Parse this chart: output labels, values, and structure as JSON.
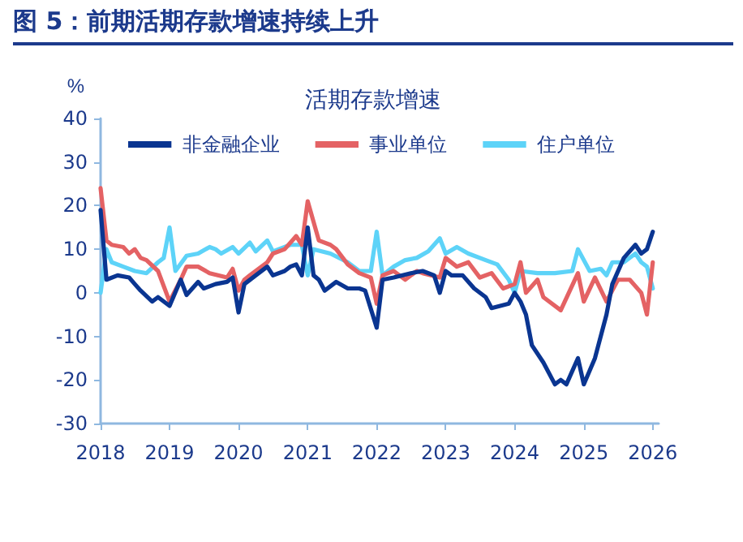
{
  "chart_data": {
    "type": "line",
    "title": "图 5：前期活期存款增速持续上升",
    "subtitle": "活期存款增速",
    "ylabel": "%",
    "xlim": [
      "2018-01",
      "2026-02"
    ],
    "xticks": [
      "2018",
      "2019",
      "2020",
      "2021",
      "2022",
      "2023",
      "2024",
      "2025",
      "2026"
    ],
    "ylim": [
      -30,
      40
    ],
    "yticks": [
      -30,
      -20,
      -10,
      0,
      10,
      20,
      30,
      40
    ],
    "grid": false,
    "legend": "top",
    "marker": "none",
    "line_style": "solid",
    "series": [
      {
        "name": "非金融企业",
        "color": "#0a3591",
        "x": [
          "2018-01",
          "2018-02",
          "2018-04",
          "2018-06",
          "2018-07",
          "2018-08",
          "2018-10",
          "2018-11",
          "2019-01",
          "2019-03",
          "2019-04",
          "2019-06",
          "2019-07",
          "2019-09",
          "2019-11",
          "2019-12",
          "2020-01",
          "2020-02",
          "2020-04",
          "2020-06",
          "2020-07",
          "2020-09",
          "2020-10",
          "2020-11",
          "2020-12",
          "2021-01",
          "2021-02",
          "2021-03",
          "2021-04",
          "2021-06",
          "2021-08",
          "2021-10",
          "2021-11",
          "2022-01",
          "2022-02",
          "2022-04",
          "2022-07",
          "2022-09",
          "2022-11",
          "2022-12",
          "2023-01",
          "2023-02",
          "2023-04",
          "2023-06",
          "2023-08",
          "2023-09",
          "2023-12",
          "2024-01",
          "2024-02",
          "2024-03",
          "2024-04",
          "2024-06",
          "2024-08",
          "2024-09",
          "2024-10",
          "2024-12",
          "2025-01",
          "2025-03",
          "2025-05",
          "2025-06",
          "2025-08",
          "2025-10",
          "2025-11",
          "2025-12",
          "2026-01"
        ],
        "values": [
          19,
          3,
          4,
          3.5,
          2,
          0.5,
          -2,
          -1,
          -3,
          3,
          -0.5,
          2.5,
          1,
          2,
          2.5,
          3.5,
          -4.5,
          2,
          4,
          6,
          4,
          5,
          6,
          6.5,
          4,
          15,
          4,
          3,
          0.5,
          2.5,
          1,
          1,
          0.5,
          -8,
          3,
          3.5,
          4.5,
          5,
          4,
          0,
          5,
          4,
          4,
          1,
          -1,
          -3.5,
          -2.5,
          0,
          -2,
          -5,
          -12,
          -16,
          -21,
          -20,
          -21,
          -15,
          -21,
          -15,
          -5,
          2,
          8,
          11,
          9,
          10,
          14
        ]
      },
      {
        "name": "事业单位",
        "color": "#e46264",
        "x": [
          "2018-01",
          "2018-02",
          "2018-03",
          "2018-05",
          "2018-06",
          "2018-07",
          "2018-08",
          "2018-09",
          "2018-11",
          "2019-01",
          "2019-03",
          "2019-04",
          "2019-06",
          "2019-08",
          "2019-11",
          "2019-12",
          "2020-01",
          "2020-02",
          "2020-03",
          "2020-06",
          "2020-07",
          "2020-09",
          "2020-11",
          "2020-12",
          "2021-01",
          "2021-03",
          "2021-05",
          "2021-06",
          "2021-08",
          "2021-10",
          "2021-12",
          "2022-01",
          "2022-02",
          "2022-04",
          "2022-06",
          "2022-08",
          "2022-09",
          "2022-12",
          "2023-01",
          "2023-03",
          "2023-05",
          "2023-07",
          "2023-09",
          "2023-11",
          "2024-01",
          "2024-02",
          "2024-03",
          "2024-05",
          "2024-06",
          "2024-09",
          "2024-12",
          "2025-01",
          "2025-03",
          "2025-05",
          "2025-07",
          "2025-09",
          "2025-11",
          "2025-12",
          "2026-01"
        ],
        "values": [
          24,
          12,
          11,
          10.5,
          9,
          10,
          8,
          7.5,
          5,
          -2,
          3,
          6,
          6,
          4.5,
          3.5,
          5.5,
          0.5,
          3,
          4,
          7,
          9,
          10,
          13,
          11,
          21,
          12,
          11,
          10,
          6.5,
          4.5,
          3.5,
          -2.5,
          4,
          5,
          3,
          5,
          4.5,
          3.5,
          8,
          6,
          7,
          3.5,
          4.5,
          1,
          2,
          7,
          0,
          3,
          -1,
          -4,
          4.5,
          -2,
          3.5,
          -2,
          3,
          3,
          0,
          -5,
          7
        ]
      },
      {
        "name": "住户单位",
        "color": "#5dd3f8",
        "x": [
          "2018-01",
          "2018-02",
          "2018-03",
          "2018-05",
          "2018-07",
          "2018-09",
          "2018-11",
          "2018-12",
          "2019-01",
          "2019-02",
          "2019-04",
          "2019-06",
          "2019-08",
          "2019-09",
          "2019-10",
          "2019-12",
          "2020-01",
          "2020-03",
          "2020-04",
          "2020-06",
          "2020-07",
          "2020-10",
          "2020-12",
          "2021-01",
          "2021-02",
          "2021-05",
          "2021-08",
          "2021-10",
          "2021-12",
          "2022-01",
          "2022-02",
          "2022-04",
          "2022-06",
          "2022-08",
          "2022-10",
          "2022-12",
          "2023-01",
          "2023-03",
          "2023-05",
          "2023-08",
          "2023-10",
          "2023-12",
          "2024-01",
          "2024-02",
          "2024-05",
          "2024-08",
          "2024-11",
          "2024-12",
          "2025-02",
          "2025-04",
          "2025-05",
          "2025-06",
          "2025-08",
          "2025-10",
          "2025-11",
          "2025-12",
          "2026-01"
        ],
        "values": [
          0,
          10,
          7,
          6,
          5,
          4.5,
          7,
          8,
          15,
          5,
          8.5,
          9,
          10.5,
          10,
          9,
          10.5,
          9,
          11.5,
          9.5,
          12,
          9.5,
          11,
          11,
          4,
          10,
          9,
          7,
          5,
          5,
          14,
          4,
          6,
          7.5,
          8,
          9.5,
          12.5,
          9,
          10.5,
          9,
          7.5,
          6.5,
          3,
          0,
          5,
          4.5,
          4.5,
          5,
          10,
          5,
          5.5,
          4,
          7,
          7,
          9,
          7,
          6,
          1
        ]
      }
    ]
  }
}
